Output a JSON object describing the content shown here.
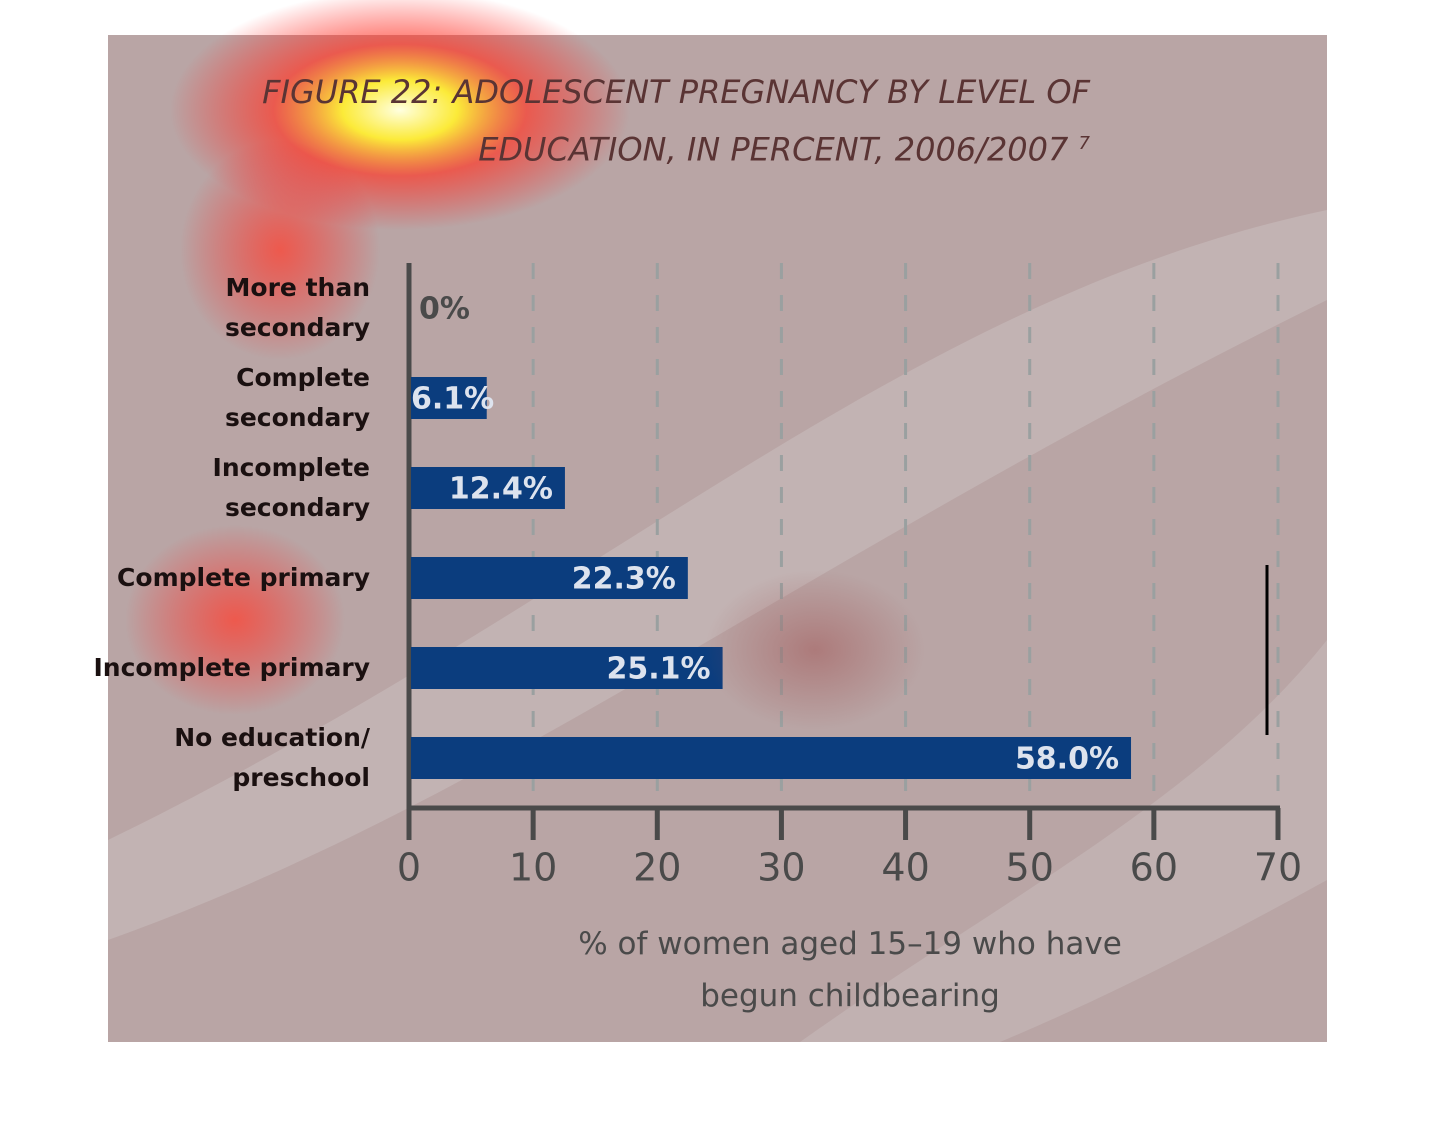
{
  "chart_data": {
    "type": "hbar",
    "title": "FIGURE 22: ADOLESCENT PREGNANCY BY LEVEL OF\nEDUCATION, IN PERCENT, 2006/2007",
    "title_note": "7",
    "categories": [
      "More than\nsecondary",
      "Complete\nsecondary",
      "Incomplete\nsecondary",
      "Complete primary",
      "Incomplete primary",
      "No education/\npreschool"
    ],
    "values": [
      0,
      6.1,
      12.4,
      22.3,
      25.1,
      58.0
    ],
    "value_labels": [
      "0%",
      "6.1%",
      "12.4%",
      "22.3%",
      "25.1%",
      "58.0%"
    ],
    "color": "#0b3d7e",
    "xlim": [
      0,
      70
    ],
    "xticks": [
      0,
      10,
      20,
      30,
      40,
      50,
      60,
      70
    ],
    "xlabel": "% of women aged 15–19 who have\nbegun childbearing",
    "grid": true
  }
}
